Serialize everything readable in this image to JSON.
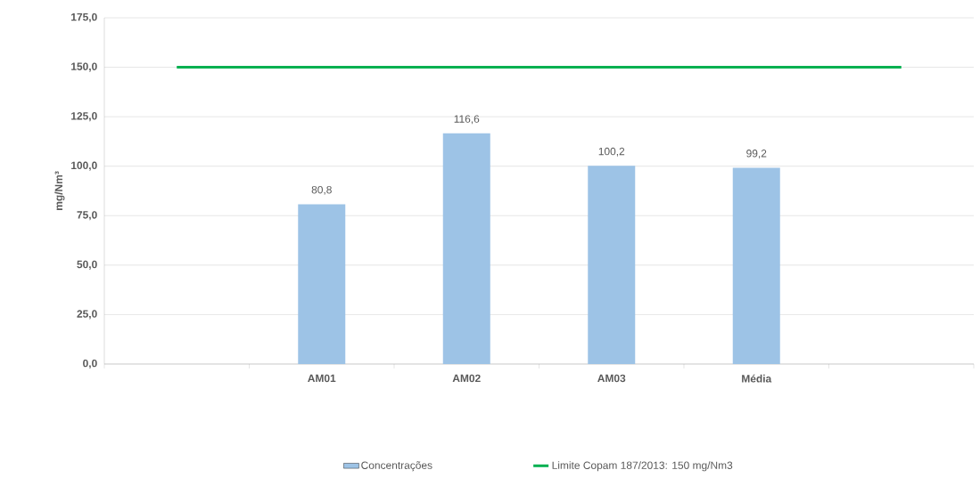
{
  "chart_data": {
    "type": "bar",
    "ylabel": "mg/Nm³",
    "categories": [
      null,
      "AM01",
      "AM02",
      "AM03",
      "Média",
      null
    ],
    "series": [
      {
        "name": "Concentrações",
        "color": "#9dc3e6",
        "values": [
          null,
          80.8,
          116.6,
          100.2,
          99.2,
          null
        ],
        "value_labels": [
          null,
          "80,8",
          "116,6",
          "100,2",
          "99,2",
          null
        ]
      },
      {
        "name": "Limite Copam 187/2013: 150 mg/Nm3",
        "type": "line",
        "color": "#00b050",
        "values": [
          150,
          150,
          150,
          150,
          150,
          150
        ]
      }
    ],
    "ylim": [
      0,
      175
    ],
    "yticks": [
      {
        "value": 0,
        "label": "0,0"
      },
      {
        "value": 25,
        "label": "25,0"
      },
      {
        "value": 50,
        "label": "50,0"
      },
      {
        "value": 75,
        "label": "75,0"
      },
      {
        "value": 100,
        "label": "100,0"
      },
      {
        "value": 125,
        "label": "125,0"
      },
      {
        "value": 150,
        "label": "150,0"
      },
      {
        "value": 175,
        "label": "175,0"
      }
    ],
    "grid": "y",
    "legend": "bottom",
    "marker": "none",
    "line_style": "solid"
  }
}
